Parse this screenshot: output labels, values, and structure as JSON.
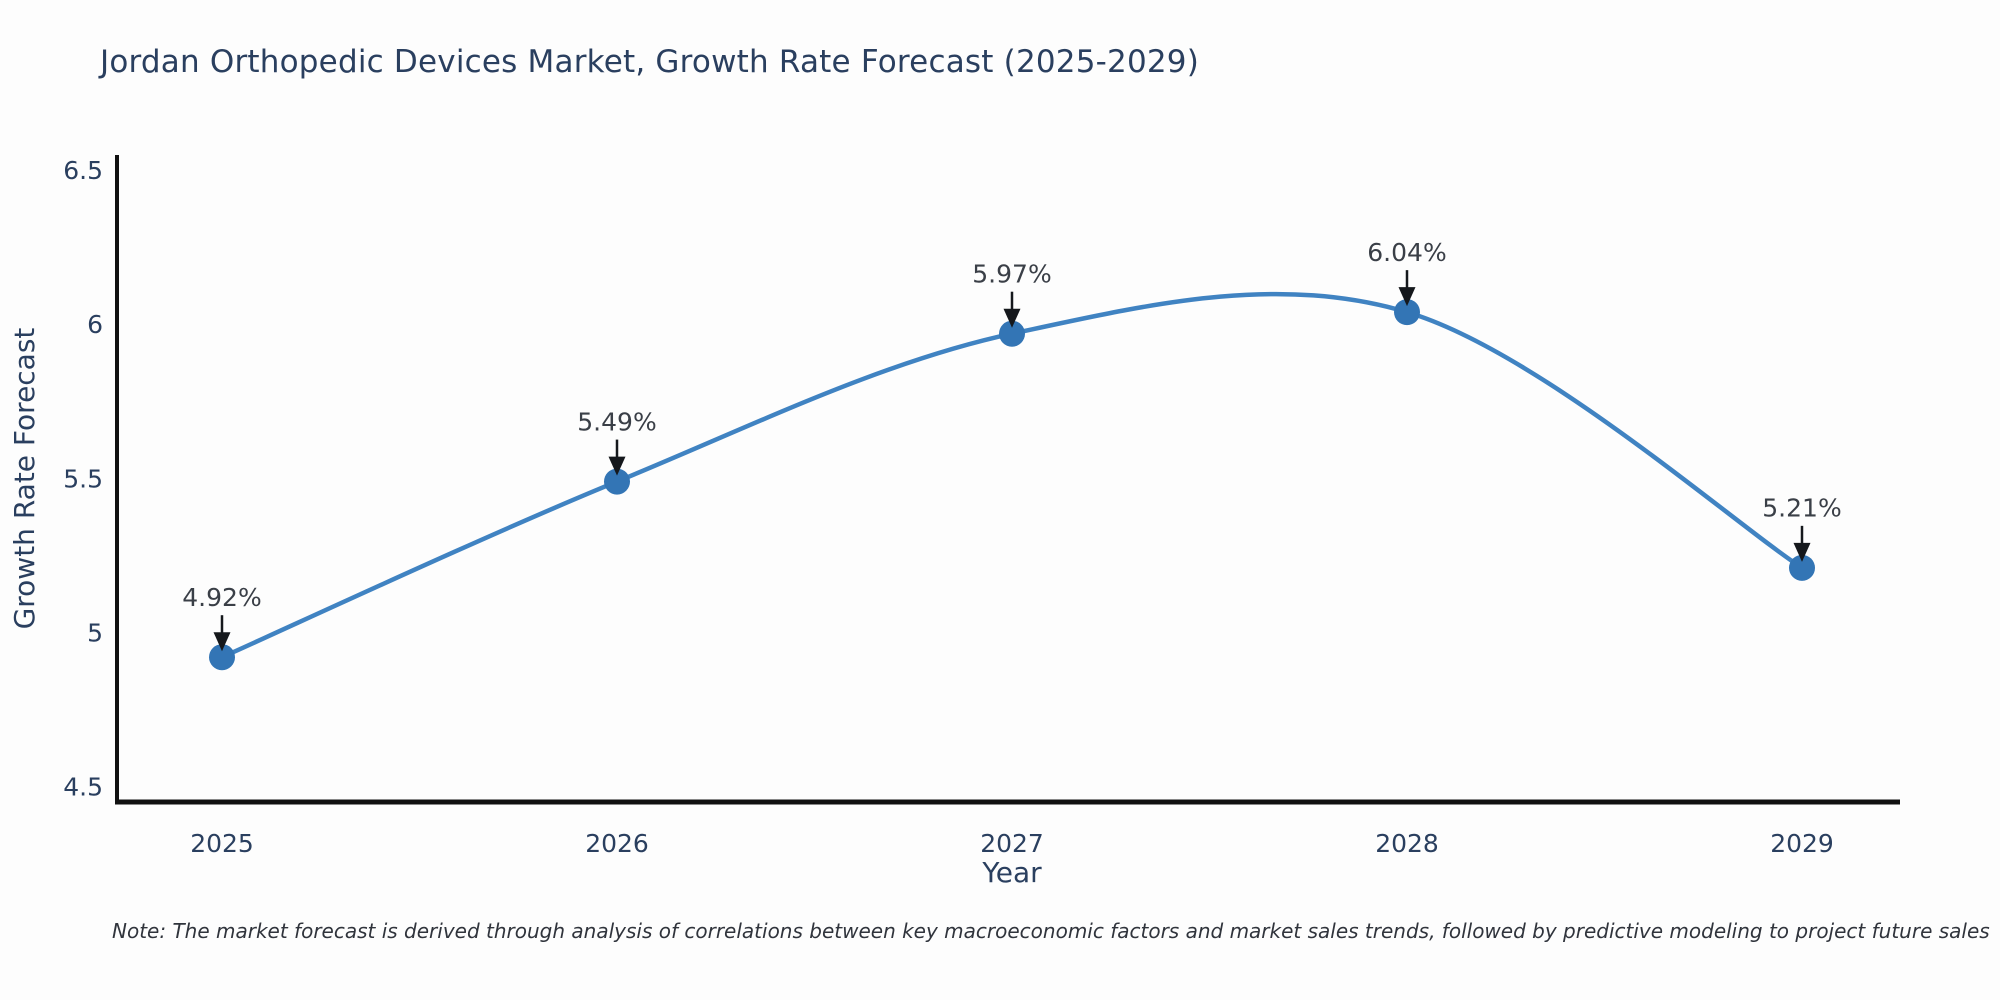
{
  "chart_data": {
    "type": "line",
    "title": "Jordan Orthopedic Devices Market, Growth Rate Forecast (2025-2029)",
    "xlabel": "Year",
    "ylabel": "Growth Rate Forecast",
    "categories": [
      "2025",
      "2026",
      "2027",
      "2028",
      "2029"
    ],
    "values": [
      4.92,
      5.49,
      5.97,
      6.04,
      5.21
    ],
    "point_labels": [
      "4.92%",
      "5.49%",
      "5.97%",
      "6.04%",
      "5.21%"
    ],
    "series_name": "Growth Rate Forecast",
    "line_shape": "spline",
    "grid": false,
    "legend": "none",
    "ylim": [
      4.45,
      6.55
    ],
    "yticks": [
      {
        "v": 4.5,
        "label": "4.5"
      },
      {
        "v": 5,
        "label": "5"
      },
      {
        "v": 5.5,
        "label": "5.5"
      },
      {
        "v": 6,
        "label": "6"
      },
      {
        "v": 6.5,
        "label": "6.5"
      }
    ],
    "colors": {
      "line": "#4083c2",
      "marker": "#3375b5",
      "axis_line": "#111111",
      "tick_text": "#2a3f5f",
      "title_text": "#2a3f5f",
      "annotation_text": "#3a3f47",
      "arrow": "#15181c"
    }
  },
  "note": {
    "text": "Note: The market forecast is derived through analysis of correlations between key macroeconomic factors and market sales trends, followed by predictive modeling to project future sales"
  }
}
